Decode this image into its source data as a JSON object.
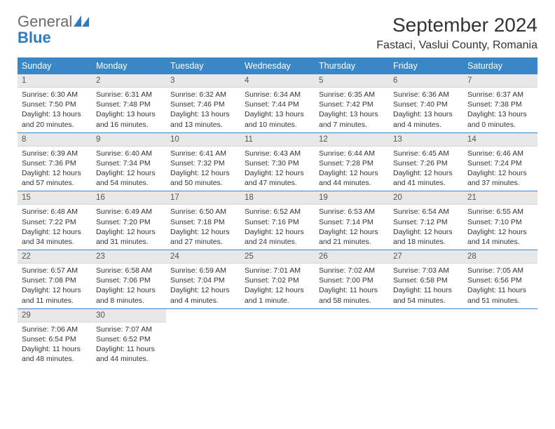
{
  "logo": {
    "general": "General",
    "blue": "Blue"
  },
  "title": "September 2024",
  "location": "Fastaci, Vaslui County, Romania",
  "colors": {
    "header_bg": "#3a87c7",
    "header_text": "#ffffff",
    "daynum_bg": "#e8e8e8",
    "text": "#333333",
    "logo_gray": "#6b6b6b",
    "logo_blue": "#2f7bbf"
  },
  "fonts": {
    "title_size": 28,
    "location_size": 16,
    "header_size": 12.5,
    "body_size": 10.5
  },
  "weekdays": [
    "Sunday",
    "Monday",
    "Tuesday",
    "Wednesday",
    "Thursday",
    "Friday",
    "Saturday"
  ],
  "weeks": [
    [
      {
        "n": "1",
        "sr": "Sunrise: 6:30 AM",
        "ss": "Sunset: 7:50 PM",
        "dl": "Daylight: 13 hours and 20 minutes."
      },
      {
        "n": "2",
        "sr": "Sunrise: 6:31 AM",
        "ss": "Sunset: 7:48 PM",
        "dl": "Daylight: 13 hours and 16 minutes."
      },
      {
        "n": "3",
        "sr": "Sunrise: 6:32 AM",
        "ss": "Sunset: 7:46 PM",
        "dl": "Daylight: 13 hours and 13 minutes."
      },
      {
        "n": "4",
        "sr": "Sunrise: 6:34 AM",
        "ss": "Sunset: 7:44 PM",
        "dl": "Daylight: 13 hours and 10 minutes."
      },
      {
        "n": "5",
        "sr": "Sunrise: 6:35 AM",
        "ss": "Sunset: 7:42 PM",
        "dl": "Daylight: 13 hours and 7 minutes."
      },
      {
        "n": "6",
        "sr": "Sunrise: 6:36 AM",
        "ss": "Sunset: 7:40 PM",
        "dl": "Daylight: 13 hours and 4 minutes."
      },
      {
        "n": "7",
        "sr": "Sunrise: 6:37 AM",
        "ss": "Sunset: 7:38 PM",
        "dl": "Daylight: 13 hours and 0 minutes."
      }
    ],
    [
      {
        "n": "8",
        "sr": "Sunrise: 6:39 AM",
        "ss": "Sunset: 7:36 PM",
        "dl": "Daylight: 12 hours and 57 minutes."
      },
      {
        "n": "9",
        "sr": "Sunrise: 6:40 AM",
        "ss": "Sunset: 7:34 PM",
        "dl": "Daylight: 12 hours and 54 minutes."
      },
      {
        "n": "10",
        "sr": "Sunrise: 6:41 AM",
        "ss": "Sunset: 7:32 PM",
        "dl": "Daylight: 12 hours and 50 minutes."
      },
      {
        "n": "11",
        "sr": "Sunrise: 6:43 AM",
        "ss": "Sunset: 7:30 PM",
        "dl": "Daylight: 12 hours and 47 minutes."
      },
      {
        "n": "12",
        "sr": "Sunrise: 6:44 AM",
        "ss": "Sunset: 7:28 PM",
        "dl": "Daylight: 12 hours and 44 minutes."
      },
      {
        "n": "13",
        "sr": "Sunrise: 6:45 AM",
        "ss": "Sunset: 7:26 PM",
        "dl": "Daylight: 12 hours and 41 minutes."
      },
      {
        "n": "14",
        "sr": "Sunrise: 6:46 AM",
        "ss": "Sunset: 7:24 PM",
        "dl": "Daylight: 12 hours and 37 minutes."
      }
    ],
    [
      {
        "n": "15",
        "sr": "Sunrise: 6:48 AM",
        "ss": "Sunset: 7:22 PM",
        "dl": "Daylight: 12 hours and 34 minutes."
      },
      {
        "n": "16",
        "sr": "Sunrise: 6:49 AM",
        "ss": "Sunset: 7:20 PM",
        "dl": "Daylight: 12 hours and 31 minutes."
      },
      {
        "n": "17",
        "sr": "Sunrise: 6:50 AM",
        "ss": "Sunset: 7:18 PM",
        "dl": "Daylight: 12 hours and 27 minutes."
      },
      {
        "n": "18",
        "sr": "Sunrise: 6:52 AM",
        "ss": "Sunset: 7:16 PM",
        "dl": "Daylight: 12 hours and 24 minutes."
      },
      {
        "n": "19",
        "sr": "Sunrise: 6:53 AM",
        "ss": "Sunset: 7:14 PM",
        "dl": "Daylight: 12 hours and 21 minutes."
      },
      {
        "n": "20",
        "sr": "Sunrise: 6:54 AM",
        "ss": "Sunset: 7:12 PM",
        "dl": "Daylight: 12 hours and 18 minutes."
      },
      {
        "n": "21",
        "sr": "Sunrise: 6:55 AM",
        "ss": "Sunset: 7:10 PM",
        "dl": "Daylight: 12 hours and 14 minutes."
      }
    ],
    [
      {
        "n": "22",
        "sr": "Sunrise: 6:57 AM",
        "ss": "Sunset: 7:08 PM",
        "dl": "Daylight: 12 hours and 11 minutes."
      },
      {
        "n": "23",
        "sr": "Sunrise: 6:58 AM",
        "ss": "Sunset: 7:06 PM",
        "dl": "Daylight: 12 hours and 8 minutes."
      },
      {
        "n": "24",
        "sr": "Sunrise: 6:59 AM",
        "ss": "Sunset: 7:04 PM",
        "dl": "Daylight: 12 hours and 4 minutes."
      },
      {
        "n": "25",
        "sr": "Sunrise: 7:01 AM",
        "ss": "Sunset: 7:02 PM",
        "dl": "Daylight: 12 hours and 1 minute."
      },
      {
        "n": "26",
        "sr": "Sunrise: 7:02 AM",
        "ss": "Sunset: 7:00 PM",
        "dl": "Daylight: 11 hours and 58 minutes."
      },
      {
        "n": "27",
        "sr": "Sunrise: 7:03 AM",
        "ss": "Sunset: 6:58 PM",
        "dl": "Daylight: 11 hours and 54 minutes."
      },
      {
        "n": "28",
        "sr": "Sunrise: 7:05 AM",
        "ss": "Sunset: 6:56 PM",
        "dl": "Daylight: 11 hours and 51 minutes."
      }
    ],
    [
      {
        "n": "29",
        "sr": "Sunrise: 7:06 AM",
        "ss": "Sunset: 6:54 PM",
        "dl": "Daylight: 11 hours and 48 minutes."
      },
      {
        "n": "30",
        "sr": "Sunrise: 7:07 AM",
        "ss": "Sunset: 6:52 PM",
        "dl": "Daylight: 11 hours and 44 minutes."
      },
      null,
      null,
      null,
      null,
      null
    ]
  ]
}
